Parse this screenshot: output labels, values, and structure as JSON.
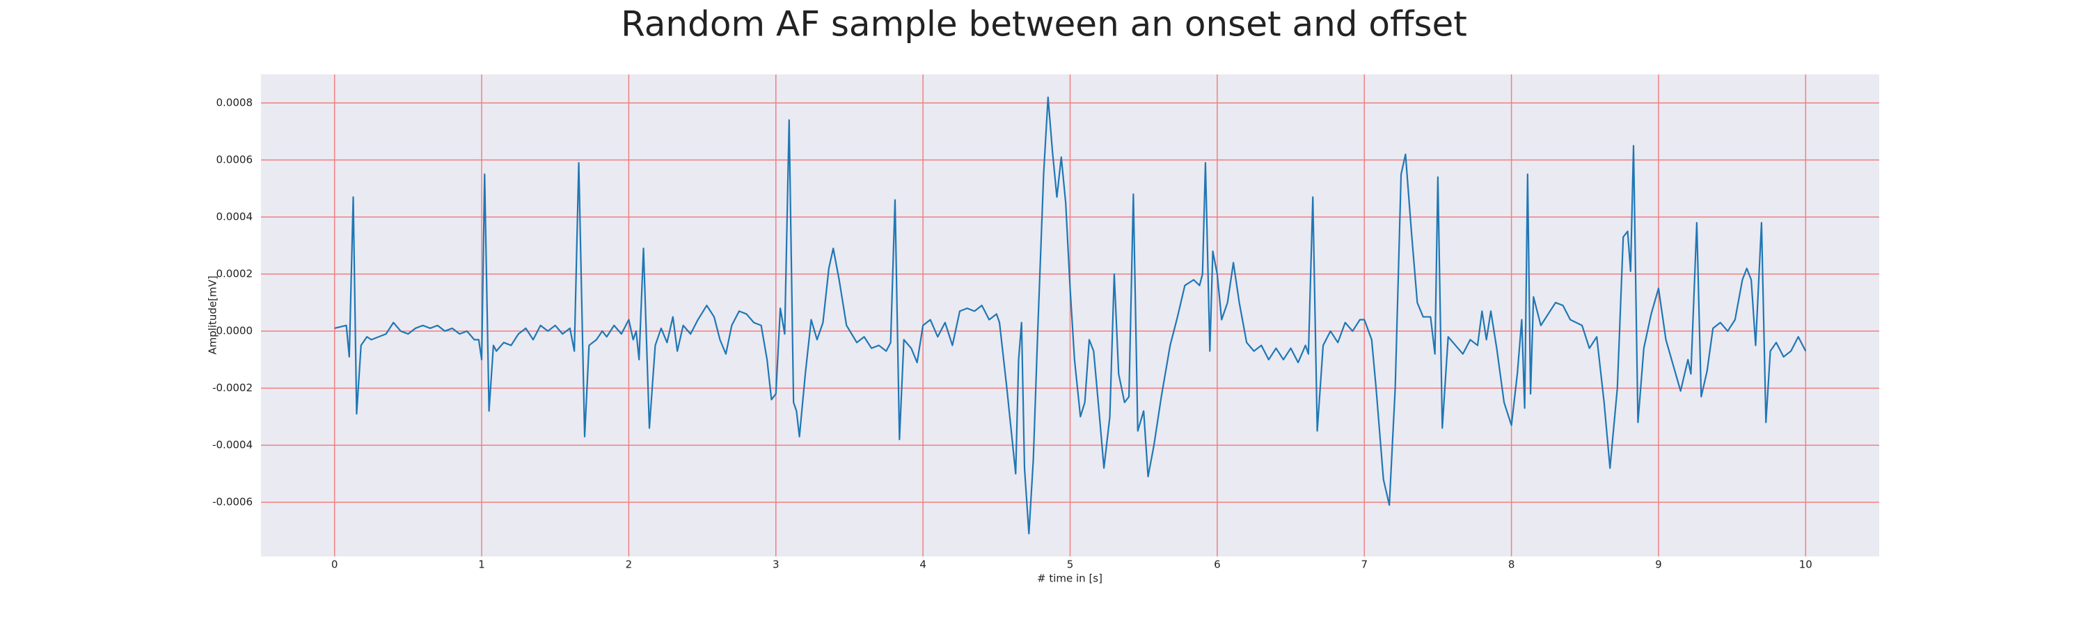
{
  "chart_data": {
    "type": "line",
    "title": "Random AF sample between an onset and offset",
    "xlabel": "# time in [s]",
    "ylabel": "Amplitude[mV]",
    "xlim": [
      -0.5,
      10.5
    ],
    "xticks": [
      0,
      1,
      2,
      3,
      4,
      5,
      6,
      7,
      8,
      9,
      10
    ],
    "ylim": [
      -0.00079,
      0.0009
    ],
    "yticks": [
      -0.0006,
      -0.0004,
      -0.0002,
      {
        "value": 0,
        "label": "0.0000"
      },
      0.0002,
      0.0004,
      0.0006,
      0.0008
    ],
    "grid": true,
    "grid_color": "#f08080",
    "background": "#eaeaf2",
    "x": [
      0,
      0.08,
      0.1,
      0.127,
      0.15,
      0.18,
      0.22,
      0.25,
      0.3,
      0.35,
      0.4,
      0.45,
      0.5,
      0.55,
      0.6,
      0.65,
      0.7,
      0.75,
      0.8,
      0.85,
      0.9,
      0.95,
      0.98,
      1.0,
      1.02,
      1.05,
      1.08,
      1.1,
      1.15,
      1.2,
      1.25,
      1.3,
      1.35,
      1.4,
      1.45,
      1.5,
      1.55,
      1.6,
      1.63,
      1.66,
      1.7,
      1.73,
      1.78,
      1.82,
      1.85,
      1.9,
      1.95,
      2.0,
      2.03,
      2.05,
      2.07,
      2.1,
      2.14,
      2.18,
      2.22,
      2.26,
      2.3,
      2.33,
      2.37,
      2.42,
      2.47,
      2.53,
      2.58,
      2.62,
      2.66,
      2.7,
      2.75,
      2.8,
      2.85,
      2.9,
      2.94,
      2.97,
      3.0,
      3.03,
      3.06,
      3.09,
      3.12,
      3.14,
      3.16,
      3.2,
      3.24,
      3.28,
      3.32,
      3.36,
      3.39,
      3.43,
      3.48,
      3.55,
      3.6,
      3.65,
      3.7,
      3.75,
      3.78,
      3.81,
      3.84,
      3.87,
      3.92,
      3.96,
      4.0,
      4.05,
      4.1,
      4.15,
      4.2,
      4.25,
      4.3,
      4.35,
      4.4,
      4.45,
      4.5,
      4.52,
      4.57,
      4.6,
      4.63,
      4.65,
      4.67,
      4.69,
      4.72,
      4.75,
      4.78,
      4.82,
      4.85,
      4.88,
      4.91,
      4.94,
      4.97,
      5.0,
      5.03,
      5.07,
      5.1,
      5.13,
      5.16,
      5.2,
      5.23,
      5.27,
      5.3,
      5.33,
      5.37,
      5.4,
      5.43,
      5.46,
      5.5,
      5.53,
      5.57,
      5.62,
      5.68,
      5.73,
      5.78,
      5.84,
      5.88,
      5.9,
      5.92,
      5.95,
      5.97,
      6.0,
      6.03,
      6.07,
      6.11,
      6.15,
      6.2,
      6.25,
      6.3,
      6.35,
      6.4,
      6.45,
      6.5,
      6.55,
      6.6,
      6.62,
      6.65,
      6.68,
      6.72,
      6.77,
      6.82,
      6.87,
      6.92,
      6.97,
      7.0,
      7.05,
      7.08,
      7.13,
      7.17,
      7.21,
      7.25,
      7.28,
      7.32,
      7.36,
      7.4,
      7.45,
      7.48,
      7.5,
      7.53,
      7.57,
      7.62,
      7.67,
      7.72,
      7.77,
      7.8,
      7.83,
      7.86,
      7.9,
      7.95,
      8.0,
      8.04,
      8.07,
      8.09,
      8.11,
      8.13,
      8.15,
      8.2,
      8.25,
      8.3,
      8.35,
      8.4,
      8.48,
      8.53,
      8.58,
      8.63,
      8.67,
      8.72,
      8.76,
      8.79,
      8.81,
      8.83,
      8.86,
      8.9,
      8.95,
      9.0,
      9.05,
      9.1,
      9.15,
      9.2,
      9.22,
      9.26,
      9.29,
      9.33,
      9.37,
      9.42,
      9.47,
      9.52,
      9.57,
      9.6,
      9.63,
      9.66,
      9.7,
      9.73,
      9.76,
      9.8,
      9.85,
      9.9,
      9.95,
      10.0
    ],
    "series": [
      {
        "color": "#1f77b4",
        "values": [
          1e-05,
          2e-05,
          -9e-05,
          0.00047,
          -0.00029,
          -5e-05,
          -2e-05,
          -3e-05,
          -2e-05,
          -1e-05,
          3e-05,
          0,
          -1e-05,
          1e-05,
          2e-05,
          1e-05,
          2e-05,
          0,
          1e-05,
          -1e-05,
          0,
          -3e-05,
          -3e-05,
          -0.0001,
          0.00055,
          -0.00028,
          -5e-05,
          -7e-05,
          -4e-05,
          -5e-05,
          -1e-05,
          1e-05,
          -3e-05,
          2e-05,
          0,
          2e-05,
          -1e-05,
          1e-05,
          -7e-05,
          0.00059,
          -0.00037,
          -5e-05,
          -3e-05,
          0,
          -2e-05,
          2e-05,
          -1e-05,
          4e-05,
          -3e-05,
          0,
          -0.0001,
          0.00029,
          -0.00034,
          -5e-05,
          1e-05,
          -4e-05,
          5e-05,
          -7e-05,
          2e-05,
          -1e-05,
          4e-05,
          9e-05,
          5e-05,
          -3e-05,
          -8e-05,
          2e-05,
          7e-05,
          6e-05,
          3e-05,
          2e-05,
          -0.0001,
          -0.00024,
          -0.00022,
          8e-05,
          -1e-05,
          0.00074,
          -0.00025,
          -0.00028,
          -0.00037,
          -0.00015,
          4e-05,
          -3e-05,
          3e-05,
          0.00022,
          0.00029,
          0.00018,
          2e-05,
          -4e-05,
          -2e-05,
          -6e-05,
          -5e-05,
          -7e-05,
          -4e-05,
          0.00046,
          -0.00038,
          -3e-05,
          -6e-05,
          -0.00011,
          2e-05,
          4e-05,
          -2e-05,
          3e-05,
          -5e-05,
          7e-05,
          8e-05,
          7e-05,
          9e-05,
          4e-05,
          6e-05,
          3e-05,
          -0.0002,
          -0.00035,
          -0.0005,
          -0.0001,
          3e-05,
          -0.00048,
          -0.00071,
          -0.00045,
          0,
          0.00055,
          0.00082,
          0.00063,
          0.00047,
          0.00061,
          0.00045,
          0.00015,
          -0.0001,
          -0.0003,
          -0.00025,
          -3e-05,
          -7e-05,
          -0.0003,
          -0.00048,
          -0.0003,
          0.0002,
          -0.00015,
          -0.00025,
          -0.00023,
          0.00048,
          -0.00035,
          -0.00028,
          -0.00051,
          -0.0004,
          -0.00023,
          -5e-05,
          5e-05,
          0.00016,
          0.00018,
          0.00016,
          0.0002,
          0.00059,
          -7e-05,
          0.00028,
          0.0002,
          4e-05,
          0.0001,
          0.00024,
          0.0001,
          -4e-05,
          -7e-05,
          -5e-05,
          -0.0001,
          -6e-05,
          -0.0001,
          -6e-05,
          -0.00011,
          -5e-05,
          -8e-05,
          0.00047,
          -0.00035,
          -5e-05,
          0,
          -4e-05,
          3e-05,
          0,
          4e-05,
          4e-05,
          -3e-05,
          -0.0002,
          -0.00052,
          -0.00061,
          -0.0002,
          0.00055,
          0.00062,
          0.00035,
          0.0001,
          5e-05,
          5e-05,
          -8e-05,
          0.00054,
          -0.00034,
          -2e-05,
          -5e-05,
          -8e-05,
          -3e-05,
          -5e-05,
          7e-05,
          -3e-05,
          7e-05,
          -6e-05,
          -0.00025,
          -0.00033,
          -0.00015,
          4e-05,
          -0.00027,
          0.00055,
          -0.00022,
          0.00012,
          2e-05,
          6e-05,
          0.0001,
          9e-05,
          4e-05,
          2e-05,
          -6e-05,
          -2e-05,
          -0.00025,
          -0.00048,
          -0.0002,
          0.00033,
          0.00035,
          0.00021,
          0.00065,
          -0.00032,
          -6e-05,
          6e-05,
          0.00015,
          -3e-05,
          -0.00012,
          -0.00021,
          -0.0001,
          -0.00015,
          0.00038,
          -0.00023,
          -0.00014,
          1e-05,
          3e-05,
          0,
          4e-05,
          0.00018,
          0.00022,
          0.00018,
          -5e-05,
          0.00038,
          -0.00032,
          -7e-05,
          -4e-05,
          -9e-05,
          -7e-05,
          -2e-05,
          -7e-05
        ]
      }
    ]
  }
}
